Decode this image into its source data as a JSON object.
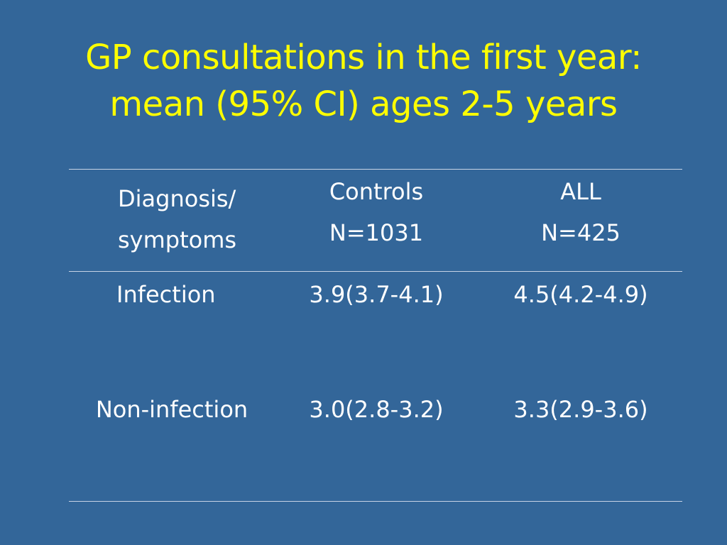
{
  "slide": {
    "title_line1": "GP consultations in the first year:",
    "title_line2": "mean (95% CI) ages 2-5 years",
    "colors": {
      "background": "#336699",
      "title": "#FFFF00",
      "text": "#FFFFFF",
      "rule": "#C8D4E6"
    }
  },
  "table": {
    "headers": [
      {
        "line1": "Diagnosis/",
        "line2": "symptoms"
      },
      {
        "line1": "Controls",
        "line2": "N=1031"
      },
      {
        "line1": "ALL",
        "line2": "N=425"
      }
    ],
    "rows": [
      {
        "label": "Infection",
        "controls": "3.9(3.7-4.1)",
        "all": "4.5(4.2-4.9)"
      },
      {
        "label": "Non-infection",
        "controls": "3.0(2.8-3.2)",
        "all": "3.3(2.9-3.6)"
      }
    ]
  }
}
